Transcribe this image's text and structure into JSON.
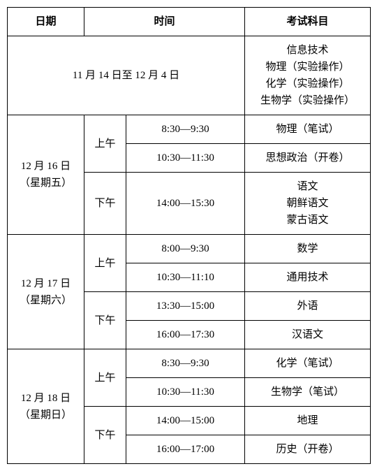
{
  "headers": {
    "date": "日期",
    "time": "时间",
    "subject": "考试科目"
  },
  "periods": {
    "morning": "上午",
    "afternoon": "下午"
  },
  "row_practical": {
    "date_range": "11 月 14 日至 12 月 4 日",
    "subjects": "信息技术\n物理（实验操作）\n化学（实验操作）\n生物学（实验操作）"
  },
  "day1": {
    "date": "12 月 16 日\n（星期五）",
    "slot1": {
      "time": "8:30—9:30",
      "subject": "物理（笔试）"
    },
    "slot2": {
      "time": "10:30—11:30",
      "subject": "思想政治（开卷）"
    },
    "slot3": {
      "time": "14:00—15:30",
      "subject": "语文\n朝鲜语文\n蒙古语文"
    }
  },
  "day2": {
    "date": "12 月 17 日\n（星期六）",
    "slot1": {
      "time": "8:00—9:30",
      "subject": "数学"
    },
    "slot2": {
      "time": "10:30—11:10",
      "subject": "通用技术"
    },
    "slot3": {
      "time": "13:30—15:00",
      "subject": "外语"
    },
    "slot4": {
      "time": "16:00—17:30",
      "subject": "汉语文"
    }
  },
  "day3": {
    "date": "12 月 18 日\n（星期日）",
    "slot1": {
      "time": "8:30—9:30",
      "subject": "化学（笔试）"
    },
    "slot2": {
      "time": "10:30—11:30",
      "subject": "生物学（笔试）"
    },
    "slot3": {
      "time": "14:00—15:00",
      "subject": "地理"
    },
    "slot4": {
      "time": "16:00—17:00",
      "subject": "历史（开卷）"
    }
  },
  "style": {
    "border_color": "#000000",
    "background_color": "#ffffff",
    "font_size": 15,
    "header_font_weight": "bold"
  }
}
